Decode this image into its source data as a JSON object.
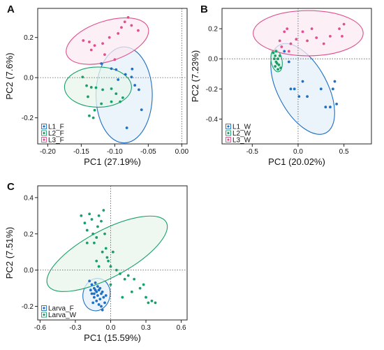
{
  "chart_data": [
    {
      "panel": "A",
      "type": "scatter",
      "xlabel": "PC1 (27.19%)",
      "ylabel": "PC2 (7.6%)",
      "xlim": [
        -0.215,
        0.008
      ],
      "ylim": [
        -0.33,
        0.345
      ],
      "xticks": [
        -0.2,
        -0.15,
        -0.1,
        -0.05,
        0.0
      ],
      "xtick_labels": [
        "-0.20",
        "-0.15",
        "-0.10",
        "-0.05",
        "0.00"
      ],
      "yticks": [
        -0.2,
        0.0,
        0.2
      ],
      "ytick_labels": [
        "-0.2",
        "0.0",
        "0.2"
      ],
      "legend_position": "bottom-left",
      "series": [
        {
          "name": "L1_F",
          "color": "#1f6fc5",
          "fill": "#e6f0f9",
          "ellipse": {
            "cx": -0.086,
            "cy": -0.086,
            "rx": 0.042,
            "ry": 0.239,
            "angle": 0
          },
          "points": [
            [
              -0.12,
              0.07
            ],
            [
              -0.105,
              0.045
            ],
            [
              -0.098,
              0.04
            ],
            [
              -0.084,
              0.016
            ],
            [
              -0.074,
              0.043
            ],
            [
              -0.064,
              -0.06
            ],
            [
              -0.075,
              0.003
            ],
            [
              -0.095,
              -0.01
            ],
            [
              -0.082,
              -0.25
            ],
            [
              -0.06,
              -0.16
            ],
            [
              -0.07,
              -0.038
            ]
          ]
        },
        {
          "name": "L2_F",
          "color": "#19a06a",
          "fill": "#e8f5ec",
          "ellipse": {
            "cx": -0.125,
            "cy": -0.047,
            "rx": 0.05,
            "ry": 0.1,
            "angle": 0
          },
          "points": [
            [
              -0.148,
              0.003
            ],
            [
              -0.142,
              -0.04
            ],
            [
              -0.135,
              -0.048
            ],
            [
              -0.14,
              -0.095
            ],
            [
              -0.128,
              -0.05
            ],
            [
              -0.118,
              -0.06
            ],
            [
              -0.105,
              -0.055
            ],
            [
              -0.098,
              -0.08
            ],
            [
              -0.088,
              -0.1
            ],
            [
              -0.105,
              -0.12
            ],
            [
              -0.12,
              -0.13
            ],
            [
              -0.13,
              -0.162
            ],
            [
              -0.138,
              -0.19
            ],
            [
              -0.132,
              -0.2
            ],
            [
              -0.092,
              -0.12
            ]
          ]
        },
        {
          "name": "L3_F",
          "color": "#e0508e",
          "fill": "#fbeaf1",
          "ellipse": {
            "cx": -0.111,
            "cy": 0.182,
            "rx": 0.064,
            "ry": 0.1,
            "angle": -18
          },
          "points": [
            [
              -0.147,
              0.185
            ],
            [
              -0.138,
              0.178
            ],
            [
              -0.13,
              0.16
            ],
            [
              -0.118,
              0.17
            ],
            [
              -0.108,
              0.2
            ],
            [
              -0.095,
              0.22
            ],
            [
              -0.09,
              0.25
            ],
            [
              -0.085,
              0.278
            ],
            [
              -0.08,
              0.3
            ],
            [
              -0.075,
              0.26
            ],
            [
              -0.065,
              0.235
            ],
            [
              -0.135,
              0.138
            ],
            [
              -0.115,
              0.115
            ],
            [
              -0.1,
              0.09
            ]
          ]
        }
      ]
    },
    {
      "panel": "B",
      "type": "scatter",
      "xlabel": "PC1 (20.02%)",
      "ylabel": "PC2 (7.23%)",
      "xlim": [
        -0.83,
        0.8
      ],
      "ylim": [
        -0.565,
        0.335
      ],
      "xticks": [
        -0.5,
        0.0,
        0.5
      ],
      "xtick_labels": [
        "-0.5",
        "0.0",
        "0.5"
      ],
      "yticks": [
        -0.4,
        -0.2,
        0.0,
        0.2
      ],
      "ytick_labels": [
        "-0.4",
        "-0.2",
        "0.0",
        "0.2"
      ],
      "legend_position": "bottom-left",
      "series": [
        {
          "name": "L1_W",
          "color": "#1f6fc5",
          "fill": "#e6f0f9",
          "ellipse": {
            "cx": 0.05,
            "cy": -0.2,
            "rx": 0.27,
            "ry": 0.33,
            "angle": -28
          },
          "points": [
            [
              -0.15,
              0.05
            ],
            [
              -0.1,
              -0.02
            ],
            [
              -0.08,
              -0.2
            ],
            [
              -0.04,
              -0.2
            ],
            [
              0.01,
              -0.25
            ],
            [
              0.05,
              -0.15
            ],
            [
              0.1,
              -0.25
            ],
            [
              0.25,
              -0.2
            ],
            [
              0.3,
              -0.32
            ],
            [
              0.35,
              -0.32
            ],
            [
              0.38,
              -0.2
            ],
            [
              0.4,
              -0.15
            ],
            [
              0.42,
              -0.3
            ]
          ]
        },
        {
          "name": "L2_W",
          "color": "#19a06a",
          "fill": "#e8f5ec",
          "ellipse": {
            "cx": -0.235,
            "cy": -0.012,
            "rx": 0.06,
            "ry": 0.075,
            "angle": -10
          },
          "points": [
            [
              -0.27,
              0.04
            ],
            [
              -0.26,
              0.0
            ],
            [
              -0.25,
              0.02
            ],
            [
              -0.24,
              -0.02
            ],
            [
              -0.23,
              -0.03
            ],
            [
              -0.22,
              0.0
            ],
            [
              -0.21,
              -0.04
            ],
            [
              -0.22,
              -0.07
            ],
            [
              -0.25,
              -0.05
            ],
            [
              -0.2,
              0.02
            ],
            [
              -0.19,
              -0.06
            ],
            [
              -0.24,
              0.05
            ]
          ]
        },
        {
          "name": "L3_W",
          "color": "#e0508e",
          "fill": "#fbeaf1",
          "ellipse": {
            "cx": 0.11,
            "cy": 0.17,
            "rx": 0.6,
            "ry": 0.15,
            "angle": 0
          },
          "points": [
            [
              -0.2,
              0.12
            ],
            [
              -0.15,
              0.18
            ],
            [
              -0.12,
              0.2
            ],
            [
              -0.08,
              0.1
            ],
            [
              -0.02,
              0.13
            ],
            [
              0.05,
              0.18
            ],
            [
              0.1,
              0.12
            ],
            [
              0.15,
              0.2
            ],
            [
              0.2,
              0.14
            ],
            [
              0.28,
              0.1
            ],
            [
              0.35,
              0.15
            ],
            [
              0.45,
              0.2
            ],
            [
              0.5,
              0.23
            ],
            [
              0.48,
              0.15
            ],
            [
              -0.18,
              0.08
            ],
            [
              -0.1,
              0.05
            ]
          ]
        }
      ]
    },
    {
      "panel": "C",
      "type": "scatter",
      "xlabel": "PC1 (15.59%)",
      "ylabel": "PC2 (7.51%)",
      "xlim": [
        -0.62,
        0.65
      ],
      "ylim": [
        -0.275,
        0.465
      ],
      "xticks": [
        -0.6,
        -0.3,
        0.0,
        0.3,
        0.6
      ],
      "xtick_labels": [
        "-0.6",
        "-0.3",
        "0.0",
        "0.3",
        "0.6"
      ],
      "yticks": [
        -0.2,
        0.0,
        0.2,
        0.4
      ],
      "ytick_labels": [
        "-0.2",
        "0.0",
        "0.2",
        "0.4"
      ],
      "legend_position": "bottom-left",
      "series": [
        {
          "name": "Larva_F",
          "color": "#1f6fc5",
          "fill": "#e6f0f9",
          "ellipse": {
            "cx": -0.12,
            "cy": -0.135,
            "rx": 0.115,
            "ry": 0.09,
            "angle": 12
          },
          "points": [
            [
              -0.18,
              -0.06
            ],
            [
              -0.16,
              -0.08
            ],
            [
              -0.14,
              -0.1
            ],
            [
              -0.13,
              -0.07
            ],
            [
              -0.12,
              -0.12
            ],
            [
              -0.1,
              -0.11
            ],
            [
              -0.09,
              -0.1
            ],
            [
              -0.11,
              -0.14
            ],
            [
              -0.08,
              -0.13
            ],
            [
              -0.07,
              -0.12
            ],
            [
              -0.06,
              -0.15
            ],
            [
              -0.09,
              -0.16
            ],
            [
              -0.12,
              -0.17
            ],
            [
              -0.14,
              -0.15
            ],
            [
              -0.16,
              -0.13
            ],
            [
              -0.15,
              -0.18
            ],
            [
              -0.1,
              -0.19
            ],
            [
              -0.08,
              -0.2
            ],
            [
              -0.05,
              -0.18
            ],
            [
              -0.07,
              -0.22
            ],
            [
              -0.13,
              -0.11
            ],
            [
              -0.17,
              -0.11
            ],
            [
              -0.11,
              -0.09
            ],
            [
              -0.04,
              -0.14
            ],
            [
              -0.14,
              -0.13
            ]
          ]
        },
        {
          "name": "Larva_W",
          "color": "#19a06a",
          "fill": "#e8f5ec",
          "ellipse": {
            "cx": -0.03,
            "cy": 0.09,
            "rx": 0.57,
            "ry": 0.13,
            "angle": -28
          },
          "points": [
            [
              -0.25,
              0.3
            ],
            [
              -0.22,
              0.26
            ],
            [
              -0.2,
              0.22
            ],
            [
              -0.18,
              0.31
            ],
            [
              -0.16,
              0.28
            ],
            [
              -0.15,
              0.2
            ],
            [
              -0.14,
              0.15
            ],
            [
              -0.12,
              0.18
            ],
            [
              -0.11,
              0.24
            ],
            [
              -0.1,
              0.3
            ],
            [
              -0.08,
              0.27
            ],
            [
              -0.07,
              0.1
            ],
            [
              -0.05,
              0.2
            ],
            [
              -0.04,
              0.12
            ],
            [
              -0.03,
              0.07
            ],
            [
              -0.02,
              0.05
            ],
            [
              0.0,
              0.02
            ],
            [
              0.02,
              0.1
            ],
            [
              0.05,
              0.0
            ],
            [
              0.08,
              -0.02
            ],
            [
              0.12,
              -0.05
            ],
            [
              0.15,
              -0.03
            ],
            [
              0.2,
              -0.05
            ],
            [
              0.25,
              -0.1
            ],
            [
              0.28,
              -0.08
            ],
            [
              0.3,
              -0.15
            ],
            [
              0.32,
              -0.18
            ],
            [
              0.35,
              -0.17
            ],
            [
              0.38,
              -0.18
            ],
            [
              -0.2,
              0.15
            ],
            [
              -0.06,
              0.33
            ],
            [
              -0.12,
              0.05
            ],
            [
              0.1,
              -0.15
            ],
            [
              0.18,
              -0.12
            ],
            [
              -0.1,
              0.02
            ],
            [
              0.0,
              -0.08
            ]
          ]
        }
      ]
    }
  ]
}
